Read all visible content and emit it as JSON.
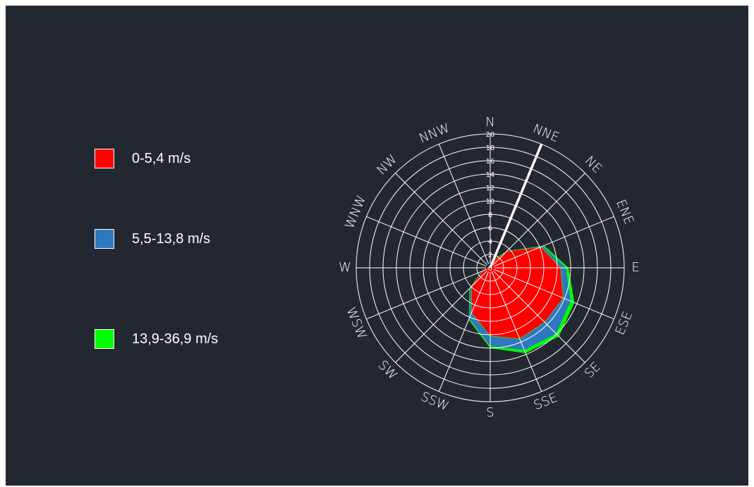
{
  "chart_data": {
    "type": "polar-area",
    "title": "",
    "directions": [
      "N",
      "NNE",
      "NE",
      "ENE",
      "E",
      "ESE",
      "SE",
      "SSE",
      "S",
      "SSW",
      "SW",
      "WSW",
      "W",
      "WNW",
      "NW",
      "NNW"
    ],
    "radial_ticks": [
      "0",
      "2",
      "4",
      "6",
      "8",
      "10",
      "12",
      "14",
      "16",
      "18",
      "20"
    ],
    "rmax": 20,
    "series": [
      {
        "name": "0-5,4 m/s",
        "color": "#ff0000",
        "values": [
          0.3,
          1.2,
          3.5,
          8.2,
          10.5,
          11.8,
          11.5,
          11.5,
          10.2,
          7.3,
          4.0,
          1.3,
          0.3,
          0.2,
          0.2,
          0.2
        ]
      },
      {
        "name": "5,5-13,8 m/s",
        "color": "#2e78bd",
        "values": [
          0.3,
          1.2,
          3.5,
          8.5,
          11.3,
          13.0,
          13.9,
          13.3,
          11.7,
          8.2,
          4.3,
          1.4,
          0.3,
          0.2,
          0.2,
          0.2
        ]
      },
      {
        "name": "13,9-36,9 m/s",
        "color": "#00ff00",
        "values": [
          0.3,
          1.2,
          3.5,
          8.7,
          11.7,
          13.6,
          14.5,
          13.8,
          12.0,
          8.4,
          4.4,
          1.4,
          0.3,
          0.2,
          0.2,
          0.2
        ]
      }
    ],
    "highlight": {
      "direction": "NNE",
      "value": 20,
      "color": "#ffffff"
    },
    "legend_position": "left",
    "grid": true,
    "background": "#232830",
    "grid_color": "#ffffff"
  }
}
